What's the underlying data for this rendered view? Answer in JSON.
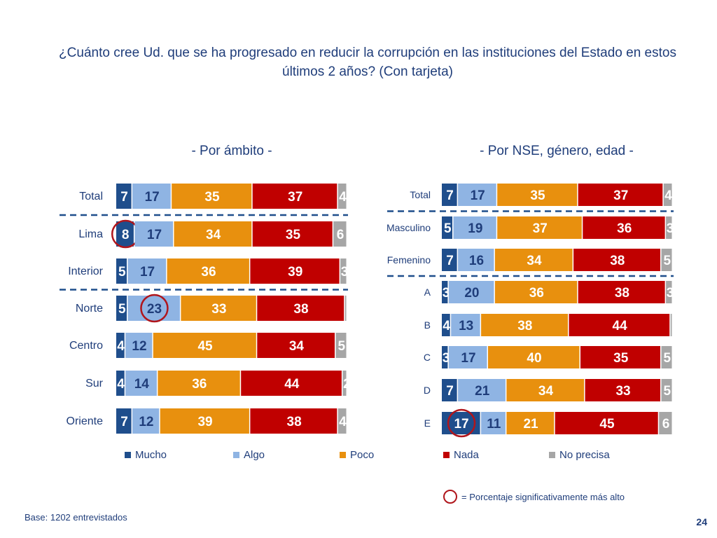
{
  "title": "¿Cuánto cree Ud. que se ha progresado en reducir la corrupción en las instituciones del Estado en estos últimos 2 años? (Con tarjeta)",
  "legend": {
    "categories": [
      "Mucho",
      "Algo",
      "Poco",
      "Nada",
      "No precisa"
    ],
    "colors": [
      "#1f4e8c",
      "#8fb4e3",
      "#e8900e",
      "#c00000",
      "#a6a6a6"
    ]
  },
  "significance_note": "= Porcentaje significativamente más alto",
  "base": "Base: 1202 entrevistados",
  "page_number": "24",
  "chart_data": [
    {
      "type": "bar",
      "orientation": "horizontal",
      "stacked": true,
      "title": "- Por ámbito -",
      "series_names": [
        "Mucho",
        "Algo",
        "Poco",
        "Nada",
        "No precisa"
      ],
      "categories": [
        "Total",
        "Lima",
        "Interior",
        "Norte",
        "Centro",
        "Sur",
        "Oriente"
      ],
      "values": [
        [
          7,
          17,
          35,
          37,
          4
        ],
        [
          8,
          17,
          34,
          35,
          6
        ],
        [
          5,
          17,
          36,
          39,
          3
        ],
        [
          5,
          23,
          33,
          38,
          1
        ],
        [
          4,
          12,
          45,
          34,
          5
        ],
        [
          4,
          14,
          36,
          44,
          2
        ],
        [
          7,
          12,
          39,
          38,
          4
        ]
      ],
      "separators_after": [
        0,
        2
      ],
      "highlighted": [
        [
          1,
          0
        ],
        [
          3,
          1
        ]
      ]
    },
    {
      "type": "bar",
      "orientation": "horizontal",
      "stacked": true,
      "title": "- Por NSE, género, edad -",
      "series_names": [
        "Mucho",
        "Algo",
        "Poco",
        "Nada",
        "No precisa"
      ],
      "categories": [
        "Total",
        "Masculino",
        "Femenino",
        "A",
        "B",
        "C",
        "D",
        "E"
      ],
      "values": [
        [
          7,
          17,
          35,
          37,
          4
        ],
        [
          5,
          19,
          37,
          36,
          3
        ],
        [
          7,
          16,
          34,
          38,
          5
        ],
        [
          3,
          20,
          36,
          38,
          3
        ],
        [
          4,
          13,
          38,
          44,
          1
        ],
        [
          3,
          17,
          40,
          35,
          5
        ],
        [
          7,
          21,
          34,
          33,
          5
        ],
        [
          17,
          11,
          21,
          45,
          6
        ]
      ],
      "separators_after": [
        0,
        2
      ],
      "highlighted": [
        [
          7,
          0
        ]
      ]
    }
  ]
}
